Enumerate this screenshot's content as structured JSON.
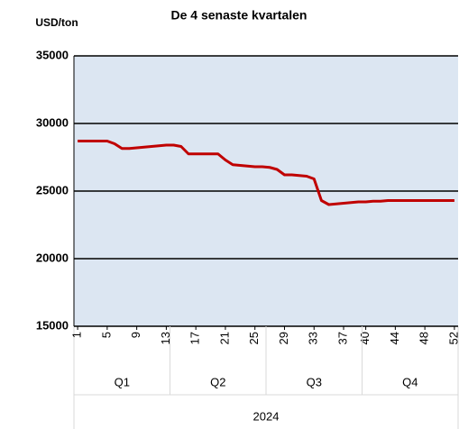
{
  "chart_data": {
    "type": "line",
    "title": "De 4 senaste kvartalen",
    "y_label": "USD/ton",
    "x": [
      1,
      2,
      3,
      4,
      5,
      6,
      7,
      8,
      9,
      10,
      11,
      12,
      13,
      14,
      15,
      16,
      17,
      18,
      19,
      20,
      21,
      22,
      23,
      24,
      25,
      26,
      27,
      28,
      29,
      30,
      31,
      32,
      33,
      34,
      35,
      36,
      37,
      38,
      39,
      40,
      41,
      42,
      43,
      44,
      45,
      46,
      47,
      48,
      49,
      50,
      51,
      52
    ],
    "series": [
      {
        "color": "#c00000",
        "values": [
          28700,
          28700,
          28700,
          28700,
          28700,
          28500,
          28150,
          28150,
          28200,
          28250,
          28300,
          28350,
          28400,
          28400,
          28300,
          27750,
          27750,
          27750,
          27750,
          27750,
          27300,
          26950,
          26900,
          26850,
          26800,
          26800,
          26750,
          26600,
          26200,
          26200,
          26150,
          26100,
          25900,
          24300,
          24000,
          24050,
          24100,
          24150,
          24200,
          24200,
          24250,
          24250,
          24300,
          24300,
          24300,
          24300,
          24300,
          24300,
          24300,
          24300,
          24300,
          24300
        ]
      }
    ],
    "xlim": [
      0.5,
      52.5
    ],
    "xticks": [
      1,
      5,
      9,
      13,
      17,
      21,
      25,
      29,
      33,
      37,
      40,
      44,
      48,
      52
    ],
    "ylim": [
      15000,
      35000
    ],
    "yticks": [
      15000,
      20000,
      25000,
      30000,
      35000
    ],
    "quarters": [
      "Q1",
      "Q2",
      "Q3",
      "Q4"
    ],
    "year": "2024",
    "grid": true
  }
}
